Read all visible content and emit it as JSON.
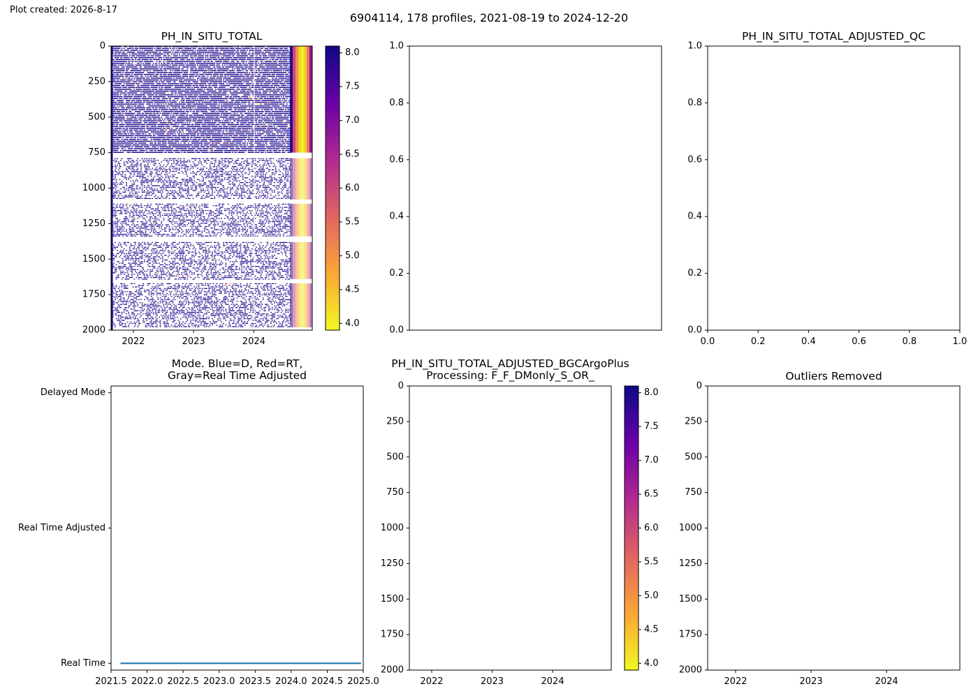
{
  "header": {
    "created": "Plot created: 2026-8-17",
    "title": "6904114, 178 profiles, 2021-08-19 to 2024-12-20"
  },
  "colors": {
    "cmap": [
      "#f0f921",
      "#fca636",
      "#e16462",
      "#b12a90",
      "#6a00a8",
      "#0d0887"
    ],
    "mode_line": "#1f77b4"
  },
  "chart_data": [
    {
      "id": "raw",
      "type": "heatmap",
      "title": "PH_IN_SITU_TOTAL",
      "x_range": [
        2021.63,
        2024.97
      ],
      "x_ticks": [
        {
          "v": 2022,
          "label": "2022"
        },
        {
          "v": 2023,
          "label": "2023"
        },
        {
          "v": 2024,
          "label": "2024"
        }
      ],
      "y_range": [
        0,
        2000
      ],
      "y_inverted": true,
      "y_ticks": [
        0,
        250,
        500,
        750,
        1000,
        1250,
        1500,
        1750,
        2000
      ],
      "colormap": "plasma_r",
      "colorbar": {
        "range": [
          3.9,
          8.1
        ],
        "ticks": [
          4.0,
          4.5,
          5.0,
          5.5,
          6.0,
          6.5,
          7.0,
          7.5,
          8.0
        ]
      },
      "bands": [
        {
          "depth": [
            0,
            750
          ],
          "value": 8.0,
          "dense": true
        },
        {
          "depth": [
            790,
            1080
          ],
          "value": 8.0,
          "dense": false
        },
        {
          "depth": [
            1110,
            1340
          ],
          "value": 8.0,
          "dense": false
        },
        {
          "depth": [
            1380,
            1640
          ],
          "value": 8.0,
          "dense": false
        },
        {
          "depth": [
            1670,
            1980
          ],
          "value": 8.0,
          "dense": false
        }
      ],
      "anomaly": {
        "time": [
          2024.6,
          2024.97
        ],
        "values": [
          7.9,
          6.0,
          5.0,
          4.3,
          4.0,
          4.4,
          5.3,
          6.8
        ]
      }
    },
    {
      "id": "adj_qc",
      "type": "line",
      "title": "",
      "x_range": [
        0,
        1
      ],
      "x_ticks": [],
      "y_range": [
        0,
        1
      ],
      "y_ticks": [
        0.0,
        0.2,
        0.4,
        0.6,
        0.8,
        1.0
      ],
      "y_tick_labels": [
        "0.0",
        "0.2",
        "0.4",
        "0.6",
        "0.8",
        "1.0"
      ],
      "series": []
    },
    {
      "id": "adj_qc2",
      "type": "line",
      "title": "PH_IN_SITU_TOTAL_ADJUSTED_QC",
      "x_range": [
        0,
        1
      ],
      "x_ticks": [
        {
          "v": 0,
          "label": "0.0"
        },
        {
          "v": 0.2,
          "label": "0.2"
        },
        {
          "v": 0.4,
          "label": "0.4"
        },
        {
          "v": 0.6,
          "label": "0.6"
        },
        {
          "v": 0.8,
          "label": "0.8"
        },
        {
          "v": 1.0,
          "label": "1.0"
        }
      ],
      "y_range": [
        0,
        1
      ],
      "y_ticks": [
        0.0,
        0.2,
        0.4,
        0.6,
        0.8,
        1.0
      ],
      "y_tick_labels": [
        "0.0",
        "0.2",
        "0.4",
        "0.6",
        "0.8",
        "1.0"
      ],
      "series": []
    },
    {
      "id": "mode",
      "type": "line",
      "title": [
        "Mode. Blue=D, Red=RT,",
        "Gray=Real Time Adjusted"
      ],
      "x_range": [
        2021.5,
        2025.0
      ],
      "x_ticks": [
        {
          "v": 2021.5,
          "label": "2021.5"
        },
        {
          "v": 2022.0,
          "label": "2022.0"
        },
        {
          "v": 2022.5,
          "label": "2022.5"
        },
        {
          "v": 2023.0,
          "label": "2023.0"
        },
        {
          "v": 2023.5,
          "label": "2023.5"
        },
        {
          "v": 2024.0,
          "label": "2024.0"
        },
        {
          "v": 2024.5,
          "label": "2024.5"
        },
        {
          "v": 2025.0,
          "label": "2025.0"
        }
      ],
      "y_range": [
        -0.05,
        2.05
      ],
      "y_ticks": [
        0,
        1,
        2
      ],
      "y_tick_labels": [
        "Real Time",
        "Real Time Adjusted",
        "Delayed Mode"
      ],
      "series": [
        {
          "x": [
            2021.63,
            2024.97
          ],
          "y": [
            0,
            0
          ]
        }
      ]
    },
    {
      "id": "bgc",
      "type": "heatmap",
      "title": [
        "PH_IN_SITU_TOTAL_ADJUSTED_BGCArgoPlus",
        "Processing: F_F_DMonly_S_OR_"
      ],
      "x_range": [
        2021.63,
        2024.97
      ],
      "x_ticks": [
        {
          "v": 2022,
          "label": "2022"
        },
        {
          "v": 2023,
          "label": "2023"
        },
        {
          "v": 2024,
          "label": "2024"
        }
      ],
      "y_range": [
        0,
        2000
      ],
      "y_inverted": true,
      "y_ticks": [
        0,
        250,
        500,
        750,
        1000,
        1250,
        1500,
        1750,
        2000
      ],
      "colormap": "plasma_r",
      "colorbar": {
        "range": [
          3.9,
          8.1
        ],
        "ticks": [
          4.0,
          4.5,
          5.0,
          5.5,
          6.0,
          6.5,
          7.0,
          7.5,
          8.0
        ]
      }
    },
    {
      "id": "outliers",
      "type": "scatter",
      "title": "Outliers Removed",
      "x_range": [
        2021.63,
        2024.97
      ],
      "x_ticks": [
        {
          "v": 2022,
          "label": "2022"
        },
        {
          "v": 2023,
          "label": "2023"
        },
        {
          "v": 2024,
          "label": "2024"
        }
      ],
      "y_range": [
        0,
        2000
      ],
      "y_inverted": true,
      "y_ticks": [
        0,
        250,
        500,
        750,
        1000,
        1250,
        1500,
        1750,
        2000
      ],
      "series": []
    }
  ]
}
